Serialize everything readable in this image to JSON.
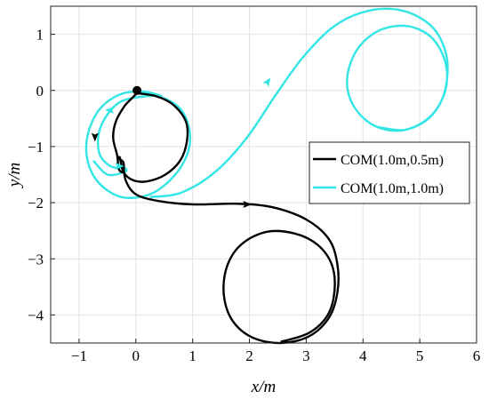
{
  "chart_data": {
    "type": "line",
    "title": "",
    "xlabel": "x/m",
    "ylabel": "y/m",
    "xlim": [
      -1.5,
      6
    ],
    "ylim": [
      -4.5,
      1.5
    ],
    "xticks": [
      "−1",
      "0",
      "1",
      "2",
      "3",
      "4",
      "5",
      "6"
    ],
    "xtick_values": [
      -1,
      0,
      1,
      2,
      3,
      4,
      5,
      6
    ],
    "yticks": [
      "1",
      "0",
      "−1",
      "−2",
      "−3",
      "−4"
    ],
    "ytick_values": [
      1,
      0,
      -1,
      -2,
      -3,
      -4
    ],
    "grid": true,
    "legend_position": "right",
    "start_marker": {
      "x": 0.02,
      "y": 0.0,
      "color": "#000000"
    },
    "series": [
      {
        "name": "COM(1.0m,0.5m)",
        "color": "#000000",
        "points": [
          [
            0.02,
            -0.05
          ],
          [
            0.35,
            -0.1
          ],
          [
            0.65,
            -0.25
          ],
          [
            0.88,
            -0.55
          ],
          [
            0.9,
            -0.9
          ],
          [
            0.78,
            -1.25
          ],
          [
            0.52,
            -1.5
          ],
          [
            0.2,
            -1.62
          ],
          [
            -0.05,
            -1.6
          ],
          [
            -0.22,
            -1.45
          ],
          [
            -0.28,
            -1.2
          ],
          [
            -0.3,
            -1.22
          ],
          [
            -0.22,
            -1.28
          ],
          [
            -0.22,
            -1.45
          ],
          [
            -0.3,
            -1.4
          ],
          [
            -0.33,
            -1.15
          ],
          [
            -0.4,
            -0.85
          ],
          [
            -0.35,
            -0.55
          ],
          [
            -0.2,
            -0.28
          ],
          [
            -0.05,
            -0.12
          ],
          [
            0.02,
            -0.05
          ]
        ],
        "path2": [
          [
            -0.22,
            -1.28
          ],
          [
            -0.18,
            -1.6
          ],
          [
            0.0,
            -1.85
          ],
          [
            0.4,
            -1.97
          ],
          [
            1.0,
            -2.03
          ],
          [
            1.8,
            -2.02
          ],
          [
            2.4,
            -2.08
          ],
          [
            3.0,
            -2.3
          ],
          [
            3.4,
            -2.65
          ],
          [
            3.55,
            -3.1
          ],
          [
            3.55,
            -3.6
          ],
          [
            3.4,
            -4.05
          ],
          [
            3.05,
            -4.38
          ],
          [
            2.55,
            -4.5
          ],
          [
            2.05,
            -4.4
          ],
          [
            1.7,
            -4.1
          ],
          [
            1.55,
            -3.65
          ],
          [
            1.6,
            -3.15
          ],
          [
            1.85,
            -2.75
          ],
          [
            2.3,
            -2.52
          ],
          [
            2.8,
            -2.55
          ],
          [
            3.2,
            -2.75
          ],
          [
            3.45,
            -3.1
          ],
          [
            3.5,
            -3.55
          ],
          [
            3.38,
            -4.0
          ],
          [
            3.05,
            -4.32
          ],
          [
            2.55,
            -4.48
          ]
        ]
      },
      {
        "name": "COM(1.0m,1.0m)",
        "color": "#33e6e6",
        "points": [
          [
            0.02,
            -0.05
          ],
          [
            0.45,
            -0.12
          ],
          [
            0.8,
            -0.35
          ],
          [
            0.95,
            -0.75
          ],
          [
            0.9,
            -1.15
          ],
          [
            0.65,
            -1.55
          ],
          [
            0.25,
            -1.85
          ],
          [
            -0.25,
            -1.9
          ],
          [
            -0.65,
            -1.65
          ],
          [
            -0.85,
            -1.25
          ],
          [
            -0.85,
            -0.8
          ],
          [
            -0.65,
            -0.35
          ],
          [
            -0.3,
            -0.08
          ],
          [
            0.1,
            -0.02
          ],
          [
            0.45,
            -0.1
          ],
          [
            0.2,
            -0.1
          ],
          [
            -0.3,
            -0.22
          ],
          [
            -0.62,
            -0.65
          ],
          [
            -0.65,
            -1.1
          ],
          [
            -0.45,
            -1.35
          ],
          [
            -0.2,
            -1.38
          ],
          [
            -0.2,
            -1.45
          ],
          [
            -0.5,
            -1.5
          ],
          [
            -0.75,
            -1.25
          ]
        ],
        "path2": [
          [
            0.25,
            -1.9
          ],
          [
            0.8,
            -1.82
          ],
          [
            1.4,
            -1.45
          ],
          [
            1.95,
            -0.85
          ],
          [
            2.45,
            -0.1
          ],
          [
            2.95,
            0.6
          ],
          [
            3.5,
            1.15
          ],
          [
            4.1,
            1.42
          ],
          [
            4.7,
            1.42
          ],
          [
            5.2,
            1.15
          ],
          [
            5.45,
            0.7
          ],
          [
            5.48,
            0.2
          ],
          [
            5.35,
            -0.25
          ],
          [
            5.05,
            -0.58
          ],
          [
            4.6,
            -0.72
          ],
          [
            4.15,
            -0.6
          ],
          [
            3.82,
            -0.25
          ],
          [
            3.72,
            0.2
          ],
          [
            3.88,
            0.7
          ],
          [
            4.25,
            1.05
          ],
          [
            4.75,
            1.15
          ],
          [
            5.2,
            0.95
          ],
          [
            5.45,
            0.5
          ],
          [
            5.45,
            0.0
          ],
          [
            5.2,
            -0.45
          ],
          [
            4.75,
            -0.7
          ],
          [
            4.25,
            -0.65
          ]
        ]
      }
    ],
    "arrows": [
      {
        "series": 0,
        "x": -0.72,
        "y": -0.82,
        "dir": "down"
      },
      {
        "series": 0,
        "x": 1.95,
        "y": -2.03,
        "dir": "right"
      },
      {
        "series": 1,
        "x": -0.45,
        "y": -0.35,
        "dir": "left"
      },
      {
        "series": 1,
        "x": -0.3,
        "y": -1.35,
        "dir": "right"
      },
      {
        "series": 1,
        "x": 2.32,
        "y": 0.15,
        "dir": "up-right"
      }
    ]
  }
}
